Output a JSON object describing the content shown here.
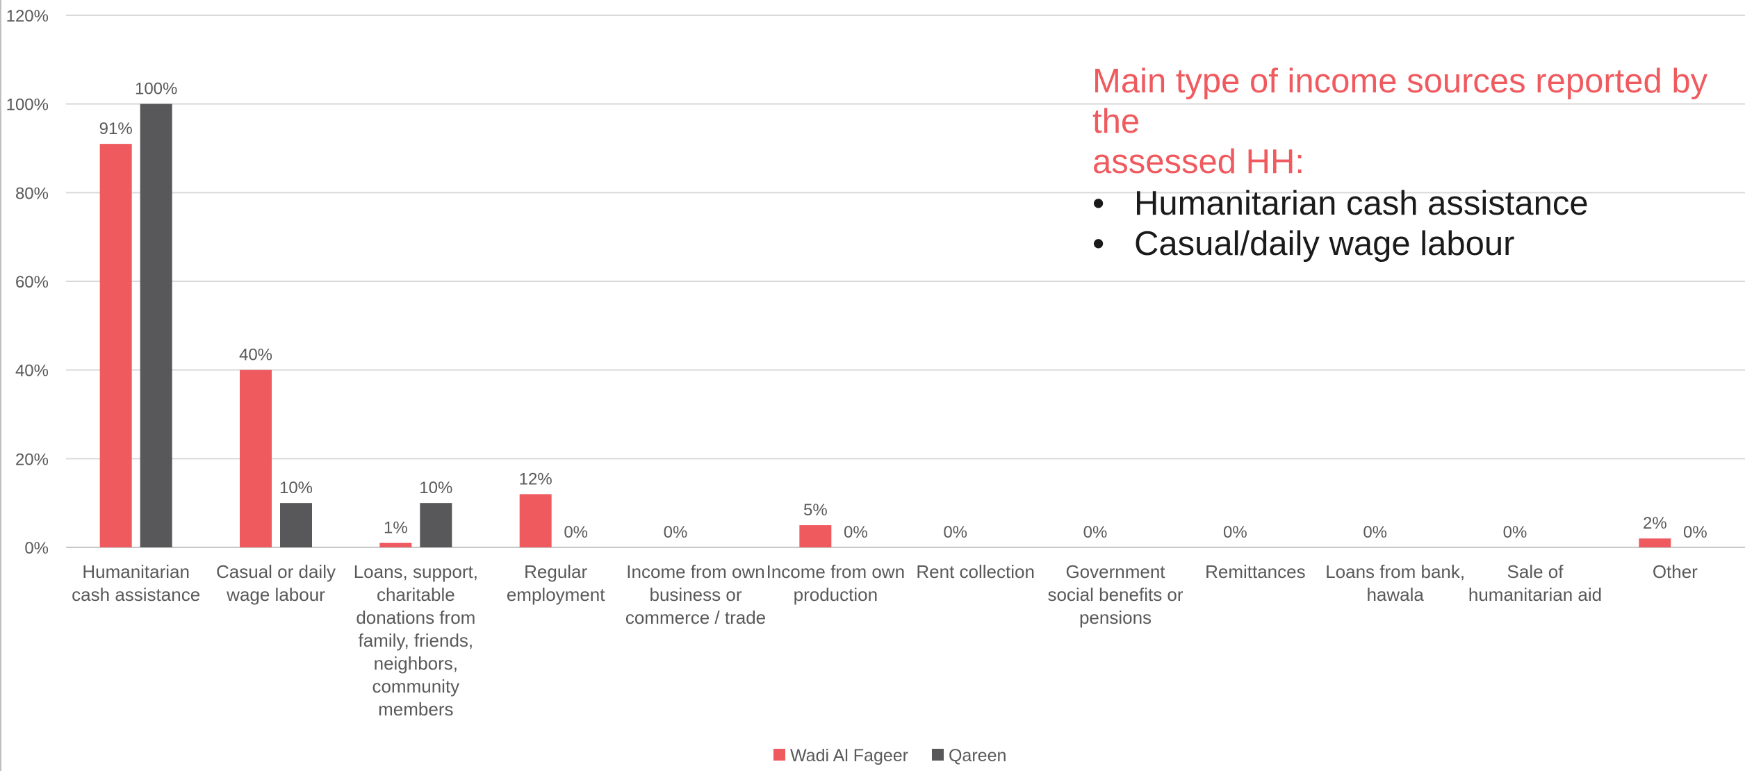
{
  "chart_data": {
    "type": "bar",
    "categories": [
      [
        "Humanitarian",
        "cash assistance"
      ],
      [
        "Casual or daily",
        "wage labour"
      ],
      [
        "Loans, support,",
        "charitable",
        "donations from",
        "family, friends,",
        "neighbors,",
        "community",
        "members"
      ],
      [
        "Regular",
        "employment"
      ],
      [
        "Income from own",
        "business or",
        "commerce / trade"
      ],
      [
        "Income from own",
        "production"
      ],
      [
        "Rent collection"
      ],
      [
        "Government",
        "social benefits or",
        "pensions"
      ],
      [
        "Remittances"
      ],
      [
        "Loans from bank,",
        "hawala"
      ],
      [
        "Sale of",
        "humanitarian aid"
      ],
      [
        "Other"
      ]
    ],
    "series": [
      {
        "name": "Wadi Al Fageer",
        "color": "#ef5a5f",
        "values": [
          91,
          40,
          1,
          12,
          0,
          5,
          0,
          0,
          0,
          0,
          0,
          2
        ],
        "labels": [
          "91%",
          "40%",
          "1%",
          "12%",
          "0%",
          "5%",
          "0%",
          "0%",
          "0%",
          "0%",
          "0%",
          "2%"
        ]
      },
      {
        "name": "Qareen",
        "color": "#58585a",
        "values": [
          100,
          10,
          10,
          0,
          0,
          0,
          0,
          0,
          0,
          0,
          0,
          0
        ],
        "labels": [
          "100%",
          "10%",
          "10%",
          "0%",
          "",
          "0%",
          "",
          "",
          "",
          "",
          "",
          "0%"
        ]
      }
    ],
    "y_ticks": [
      "0%",
      "20%",
      "40%",
      "60%",
      "80%",
      "100%",
      "120%"
    ],
    "ylim": [
      0,
      120
    ],
    "grid": true,
    "legend_position": "bottom-center"
  },
  "annotation": {
    "title_lines": [
      "Main type of income sources reported by the",
      "assessed HH:"
    ],
    "bullet_symbol": "•",
    "bullets": [
      "Humanitarian cash assistance",
      "Casual/daily wage labour"
    ]
  }
}
